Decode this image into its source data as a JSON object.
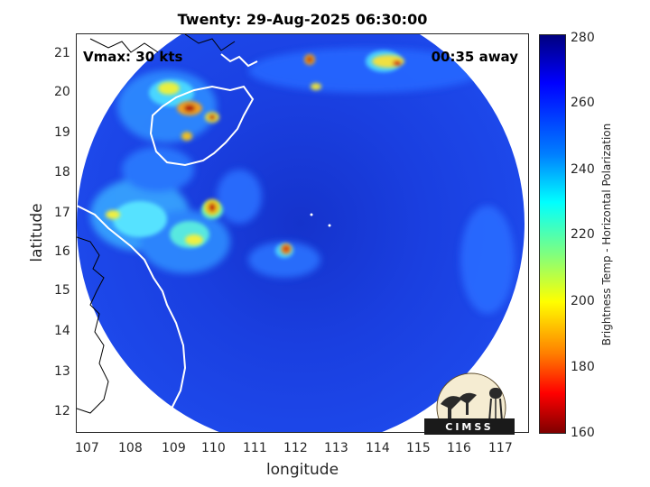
{
  "title": "Twenty: 29-Aug-2025 06:30:00",
  "vmax_label": "Vmax: 30 kts",
  "time_away": "00:35 away",
  "x_axis": {
    "label": "longitude",
    "ticks": [
      "107",
      "108",
      "109",
      "110",
      "111",
      "112",
      "113",
      "114",
      "115",
      "116",
      "117"
    ],
    "range": [
      106.9,
      117.3
    ]
  },
  "y_axis": {
    "label": "latitude",
    "ticks": [
      "12",
      "13",
      "14",
      "15",
      "16",
      "17",
      "18",
      "19",
      "20",
      "21"
    ],
    "range": [
      11.5,
      21.4
    ]
  },
  "colorbar": {
    "label": "Brightness Temp - Horizontal Polarization",
    "ticks": [
      "280",
      "260",
      "240",
      "220",
      "200",
      "180",
      "160"
    ],
    "range": [
      160,
      280
    ],
    "colormap": "jet"
  },
  "logo_text": "CIMSS",
  "storm_center": {
    "lon": 112.0,
    "lat": 16.5
  },
  "colors": {
    "background_scene": "#1a3fe0",
    "coastline": "#ffffff",
    "land_outline": "#000000"
  }
}
